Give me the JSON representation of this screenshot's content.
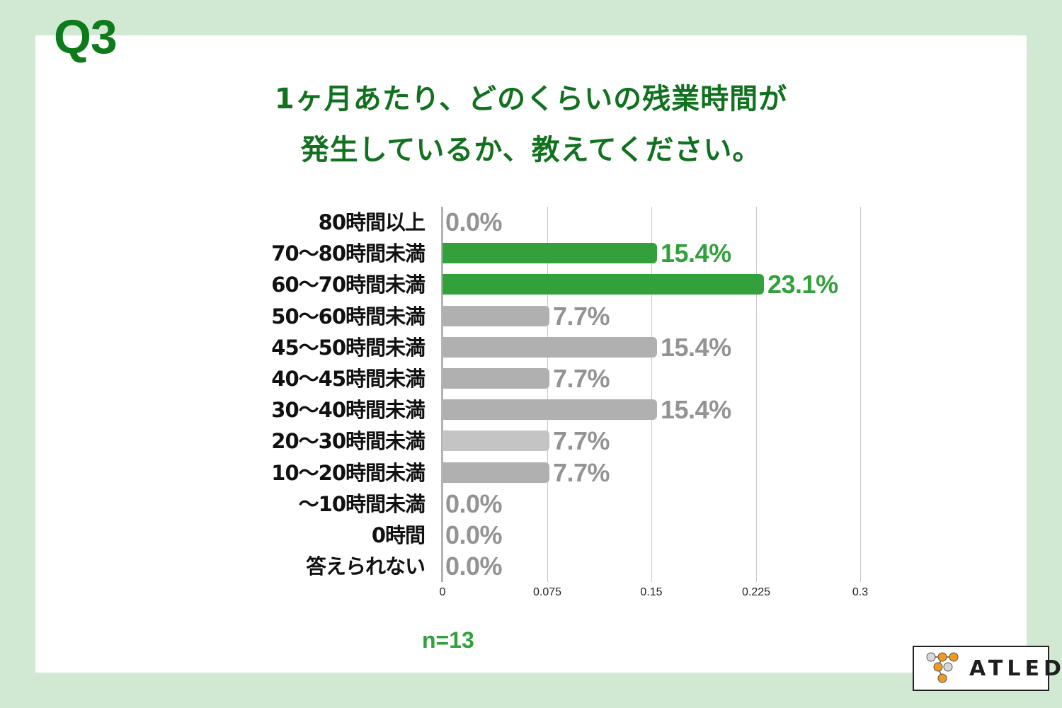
{
  "question_label": "Q3",
  "title": {
    "line1": "1ヶ月あたり、どのくらいの残業時間が",
    "line2": "発生しているか、教えてください。"
  },
  "sample_size": "n=13",
  "logo": {
    "text": "ATLED"
  },
  "colors": {
    "background": "#d1e9d3",
    "title_green": "#12711f",
    "highlight_bar": "#33a13b",
    "gray_bar": "#b0b0b0",
    "light_gray_bar": "#c4c4c4",
    "gray_label": "#939393"
  },
  "chart_data": {
    "type": "bar",
    "orientation": "horizontal",
    "title": "1ヶ月あたり、どのくらいの残業時間が発生しているか、教えてください。",
    "xlabel": "",
    "ylabel": "",
    "xlim": [
      0,
      0.3
    ],
    "x_ticks": [
      "0",
      "0.075",
      "0.15",
      "0.225",
      "0.3"
    ],
    "grid": true,
    "legend": "none",
    "categories": [
      "80時間以上",
      "70〜80時間未満",
      "60〜70時間未満",
      "50〜60時間未満",
      "45〜50時間未満",
      "40〜45時間未満",
      "30〜40時間未満",
      "20〜30時間未満",
      "10〜20時間未満",
      "〜10時間未満",
      "0時間",
      "答えられない"
    ],
    "values": [
      0.0,
      0.154,
      0.231,
      0.077,
      0.154,
      0.077,
      0.154,
      0.077,
      0.077,
      0.0,
      0.0,
      0.0
    ],
    "labels": [
      "0.0%",
      "15.4%",
      "23.1%",
      "7.7%",
      "15.4%",
      "7.7%",
      "15.4%",
      "7.7%",
      "7.7%",
      "0.0%",
      "0.0%",
      "0.0%"
    ],
    "highlighted": [
      false,
      true,
      true,
      false,
      false,
      false,
      false,
      false,
      false,
      false,
      false,
      false
    ],
    "annotation": "n=13"
  }
}
